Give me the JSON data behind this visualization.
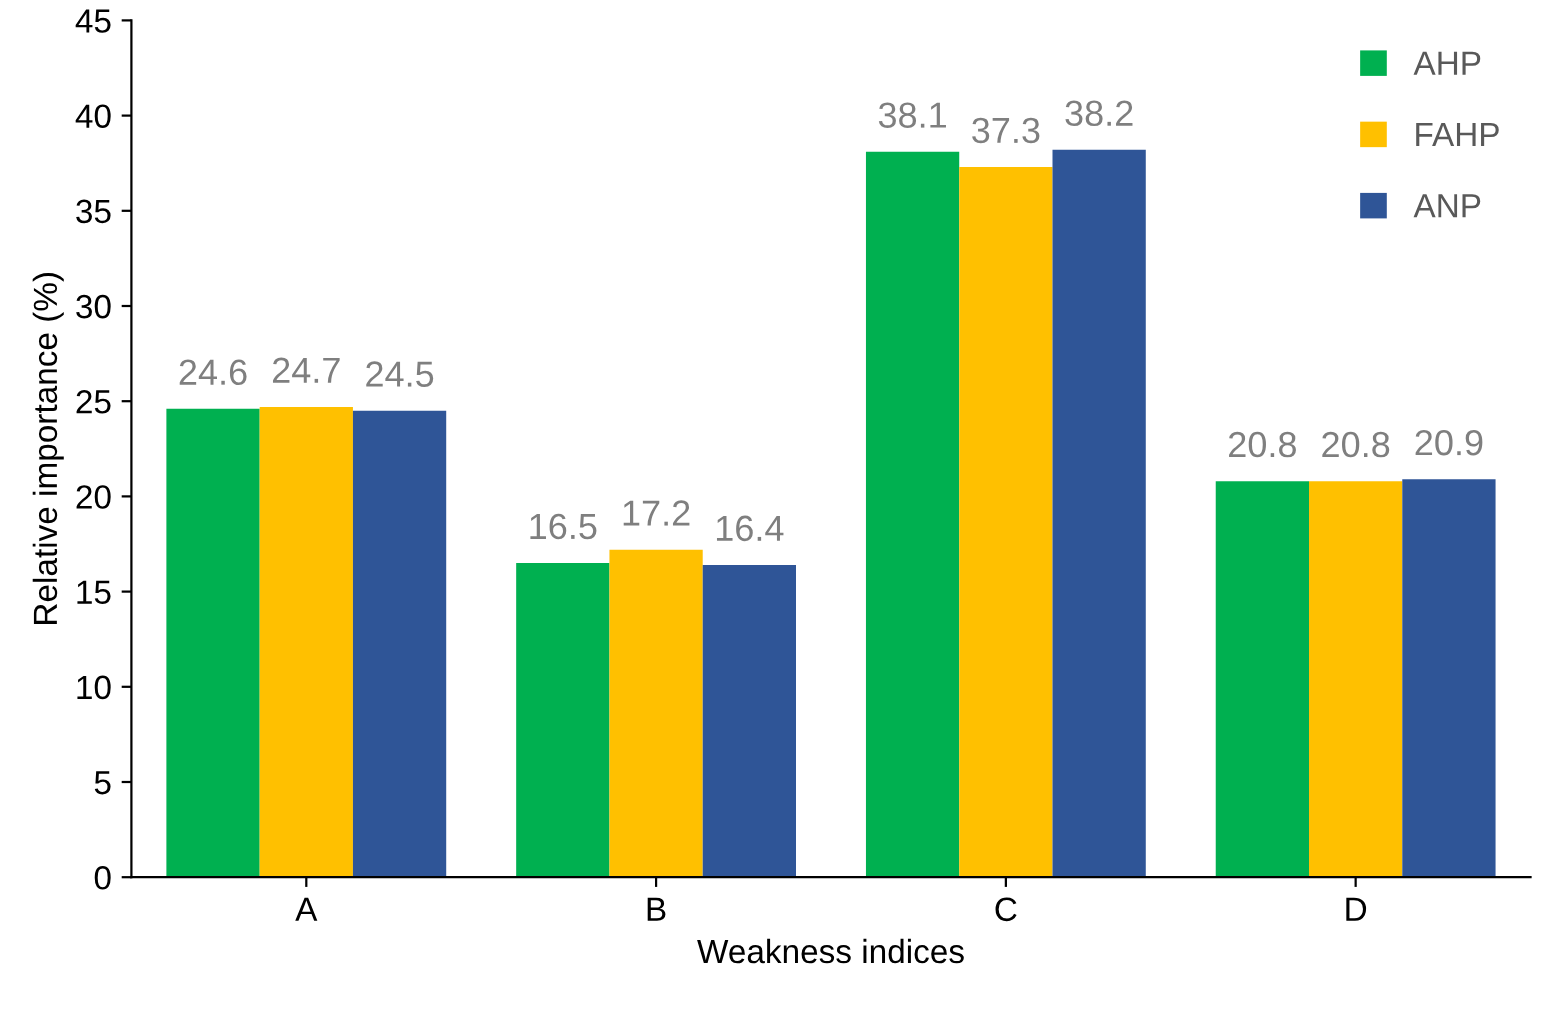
{
  "chart_data": {
    "type": "bar",
    "xlabel": "Weakness indices",
    "ylabel": "Relative importance (%)",
    "categories": [
      "A",
      "B",
      "C",
      "D"
    ],
    "series": [
      {
        "name": "AHP",
        "color": "#00b050",
        "values": [
          24.6,
          16.5,
          38.1,
          20.8
        ]
      },
      {
        "name": "FAHP",
        "color": "#ffc000",
        "values": [
          24.7,
          17.2,
          37.3,
          20.8
        ]
      },
      {
        "name": "ANP",
        "color": "#2f5597",
        "values": [
          24.5,
          16.4,
          38.2,
          20.9
        ]
      }
    ],
    "ylim": [
      0,
      45
    ],
    "yticks": [
      0,
      5,
      10,
      15,
      20,
      25,
      30,
      35,
      40,
      45
    ],
    "data_labels": true,
    "legend": "top right",
    "grid": false
  }
}
